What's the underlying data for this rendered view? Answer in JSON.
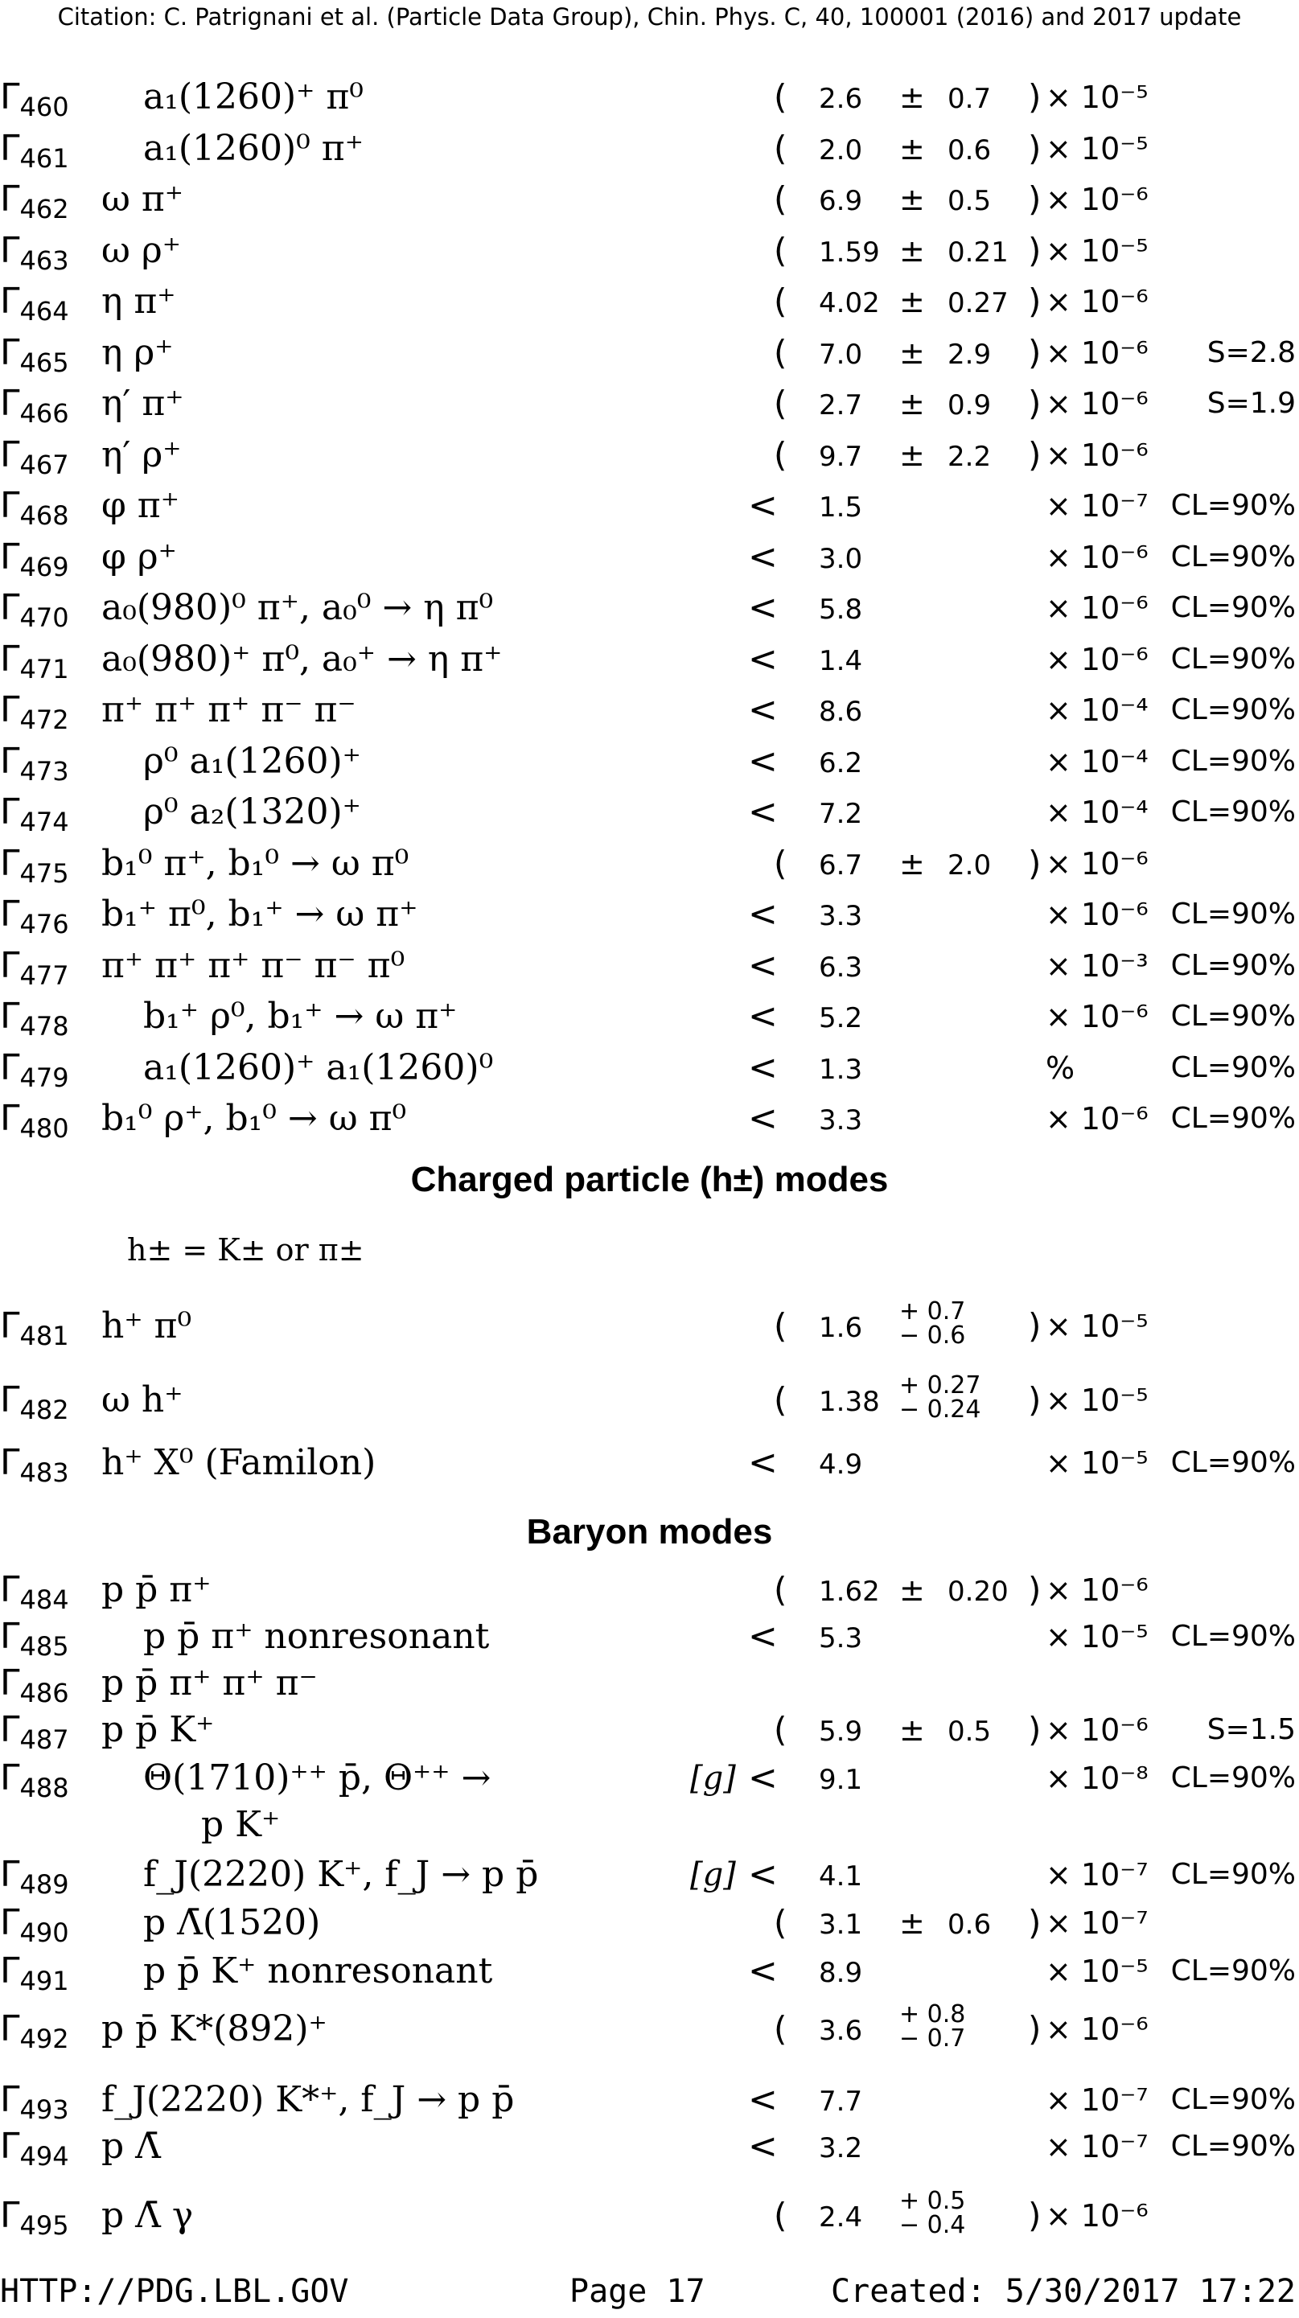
{
  "header": {
    "citation": "Citation: C. Patrignani et al. (Particle Data Group), Chin. Phys. C, 40, 100001 (2016) and 2017 update"
  },
  "rows_top": [
    {
      "id": "460",
      "mode": "a₁(1260)⁺ π⁰",
      "indent": true,
      "limit": "",
      "paren": true,
      "value": "2.6",
      "pm": "±",
      "err": "0.7",
      "err_up": "",
      "err_dn": "",
      "scale": "× 10⁻⁵",
      "extra": ""
    },
    {
      "id": "461",
      "mode": "a₁(1260)⁰ π⁺",
      "indent": true,
      "limit": "",
      "paren": true,
      "value": "2.0",
      "pm": "±",
      "err": "0.6",
      "err_up": "",
      "err_dn": "",
      "scale": "× 10⁻⁵",
      "extra": ""
    },
    {
      "id": "462",
      "mode": "ω π⁺",
      "indent": false,
      "limit": "",
      "paren": true,
      "value": "6.9",
      "pm": "±",
      "err": "0.5",
      "err_up": "",
      "err_dn": "",
      "scale": "× 10⁻⁶",
      "extra": ""
    },
    {
      "id": "463",
      "mode": "ω ρ⁺",
      "indent": false,
      "limit": "",
      "paren": true,
      "value": "1.59",
      "pm": "±",
      "err": "0.21",
      "err_up": "",
      "err_dn": "",
      "scale": "× 10⁻⁵",
      "extra": ""
    },
    {
      "id": "464",
      "mode": "η π⁺",
      "indent": false,
      "limit": "",
      "paren": true,
      "value": "4.02",
      "pm": "±",
      "err": "0.27",
      "err_up": "",
      "err_dn": "",
      "scale": "× 10⁻⁶",
      "extra": ""
    },
    {
      "id": "465",
      "mode": "η ρ⁺",
      "indent": false,
      "limit": "",
      "paren": true,
      "value": "7.0",
      "pm": "±",
      "err": "2.9",
      "err_up": "",
      "err_dn": "",
      "scale": "× 10⁻⁶",
      "extra": "S=2.8"
    },
    {
      "id": "466",
      "mode": "η′ π⁺",
      "indent": false,
      "limit": "",
      "paren": true,
      "value": "2.7",
      "pm": "±",
      "err": "0.9",
      "err_up": "",
      "err_dn": "",
      "scale": "× 10⁻⁶",
      "extra": "S=1.9"
    },
    {
      "id": "467",
      "mode": "η′ ρ⁺",
      "indent": false,
      "limit": "",
      "paren": true,
      "value": "9.7",
      "pm": "±",
      "err": "2.2",
      "err_up": "",
      "err_dn": "",
      "scale": "× 10⁻⁶",
      "extra": ""
    },
    {
      "id": "468",
      "mode": "φ π⁺",
      "indent": false,
      "limit": "<",
      "paren": false,
      "value": "1.5",
      "pm": "",
      "err": "",
      "err_up": "",
      "err_dn": "",
      "scale": "× 10⁻⁷",
      "extra": "CL=90%"
    },
    {
      "id": "469",
      "mode": "φ ρ⁺",
      "indent": false,
      "limit": "<",
      "paren": false,
      "value": "3.0",
      "pm": "",
      "err": "",
      "err_up": "",
      "err_dn": "",
      "scale": "× 10⁻⁶",
      "extra": "CL=90%"
    },
    {
      "id": "470",
      "mode": "a₀(980)⁰ π⁺,  a₀⁰ → η π⁰",
      "indent": false,
      "limit": "<",
      "paren": false,
      "value": "5.8",
      "pm": "",
      "err": "",
      "err_up": "",
      "err_dn": "",
      "scale": "× 10⁻⁶",
      "extra": "CL=90%"
    },
    {
      "id": "471",
      "mode": "a₀(980)⁺ π⁰,  a₀⁺ → η π⁺",
      "indent": false,
      "limit": "<",
      "paren": false,
      "value": "1.4",
      "pm": "",
      "err": "",
      "err_up": "",
      "err_dn": "",
      "scale": "× 10⁻⁶",
      "extra": "CL=90%"
    },
    {
      "id": "472",
      "mode": "π⁺ π⁺ π⁺ π⁻ π⁻",
      "indent": false,
      "limit": "<",
      "paren": false,
      "value": "8.6",
      "pm": "",
      "err": "",
      "err_up": "",
      "err_dn": "",
      "scale": "× 10⁻⁴",
      "extra": "CL=90%"
    },
    {
      "id": "473",
      "mode": "ρ⁰ a₁(1260)⁺",
      "indent": true,
      "limit": "<",
      "paren": false,
      "value": "6.2",
      "pm": "",
      "err": "",
      "err_up": "",
      "err_dn": "",
      "scale": "× 10⁻⁴",
      "extra": "CL=90%"
    },
    {
      "id": "474",
      "mode": "ρ⁰ a₂(1320)⁺",
      "indent": true,
      "limit": "<",
      "paren": false,
      "value": "7.2",
      "pm": "",
      "err": "",
      "err_up": "",
      "err_dn": "",
      "scale": "× 10⁻⁴",
      "extra": "CL=90%"
    },
    {
      "id": "475",
      "mode": "b₁⁰ π⁺,  b₁⁰ → ω π⁰",
      "indent": false,
      "limit": "",
      "paren": true,
      "value": "6.7",
      "pm": "±",
      "err": "2.0",
      "err_up": "",
      "err_dn": "",
      "scale": "× 10⁻⁶",
      "extra": ""
    },
    {
      "id": "476",
      "mode": "b₁⁺ π⁰,  b₁⁺ → ω π⁺",
      "indent": false,
      "limit": "<",
      "paren": false,
      "value": "3.3",
      "pm": "",
      "err": "",
      "err_up": "",
      "err_dn": "",
      "scale": "× 10⁻⁶",
      "extra": "CL=90%"
    },
    {
      "id": "477",
      "mode": "π⁺ π⁺ π⁺ π⁻ π⁻ π⁰",
      "indent": false,
      "limit": "<",
      "paren": false,
      "value": "6.3",
      "pm": "",
      "err": "",
      "err_up": "",
      "err_dn": "",
      "scale": "× 10⁻³",
      "extra": "CL=90%"
    },
    {
      "id": "478",
      "mode": "b₁⁺ ρ⁰,  b₁⁺ → ω π⁺",
      "indent": true,
      "limit": "<",
      "paren": false,
      "value": "5.2",
      "pm": "",
      "err": "",
      "err_up": "",
      "err_dn": "",
      "scale": "× 10⁻⁶",
      "extra": "CL=90%"
    },
    {
      "id": "479",
      "mode": "a₁(1260)⁺ a₁(1260)⁰",
      "indent": true,
      "limit": "<",
      "paren": false,
      "value": "1.3",
      "pm": "",
      "err": "",
      "err_up": "",
      "err_dn": "",
      "scale": "%",
      "extra": "CL=90%"
    },
    {
      "id": "480",
      "mode": "b₁⁰ ρ⁺,  b₁⁰ → ω π⁰",
      "indent": false,
      "limit": "<",
      "paren": false,
      "value": "3.3",
      "pm": "",
      "err": "",
      "err_up": "",
      "err_dn": "",
      "scale": "× 10⁻⁶",
      "extra": "CL=90%"
    }
  ],
  "section_charged": {
    "title": "Charged particle (h±) modes",
    "definition": "h± = K± or π±"
  },
  "rows_charged": [
    {
      "id": "481",
      "mode": "h⁺ π⁰",
      "indent": false,
      "limit": "",
      "paren": true,
      "value": "1.6",
      "pm": "",
      "err": "",
      "err_up": "+ 0.7",
      "err_dn": "− 0.6",
      "scale": "× 10⁻⁵",
      "extra": ""
    },
    {
      "id": "482",
      "mode": "ω h⁺",
      "indent": false,
      "limit": "",
      "paren": true,
      "value": "1.38",
      "pm": "",
      "err": "",
      "err_up": "+ 0.27",
      "err_dn": "− 0.24",
      "scale": "× 10⁻⁵",
      "extra": ""
    },
    {
      "id": "483",
      "mode": "h⁺ X⁰ (Familon)",
      "indent": false,
      "limit": "<",
      "paren": false,
      "value": "4.9",
      "pm": "",
      "err": "",
      "err_up": "",
      "err_dn": "",
      "scale": "× 10⁻⁵",
      "extra": "CL=90%"
    }
  ],
  "section_baryon": {
    "title": "Baryon modes"
  },
  "rows_baryon": [
    {
      "id": "484",
      "mode": "p p̄ π⁺",
      "indent": false,
      "limit": "",
      "paren": true,
      "value": "1.62",
      "pm": "±",
      "err": "0.20",
      "err_up": "",
      "err_dn": "",
      "scale": "× 10⁻⁶",
      "extra": ""
    },
    {
      "id": "485",
      "mode": "p p̄ π⁺ nonresonant",
      "indent": true,
      "limit": "<",
      "paren": false,
      "value": "5.3",
      "pm": "",
      "err": "",
      "err_up": "",
      "err_dn": "",
      "scale": "× 10⁻⁵",
      "extra": "CL=90%"
    },
    {
      "id": "486",
      "mode": "p p̄ π⁺ π⁺ π⁻",
      "indent": false,
      "limit": "",
      "paren": false,
      "value": "",
      "pm": "",
      "err": "",
      "err_up": "",
      "err_dn": "",
      "scale": "",
      "extra": ""
    },
    {
      "id": "487",
      "mode": "p p̄ K⁺",
      "indent": false,
      "limit": "",
      "paren": true,
      "value": "5.9",
      "pm": "±",
      "err": "0.5",
      "err_up": "",
      "err_dn": "",
      "scale": "× 10⁻⁶",
      "extra": "S=1.5"
    },
    {
      "id": "488",
      "mode": "Θ(1710)⁺⁺ p̄,  Θ⁺⁺ →",
      "mode2": "p K⁺",
      "indent": true,
      "note": "[g]",
      "limit": "<",
      "paren": false,
      "value": "9.1",
      "pm": "",
      "err": "",
      "err_up": "",
      "err_dn": "",
      "scale": "× 10⁻⁸",
      "extra": "CL=90%"
    },
    {
      "id": "489",
      "mode": "f_J(2220) K⁺,  f_J → p p̄",
      "indent": true,
      "note": "[g]",
      "limit": "<",
      "paren": false,
      "value": "4.1",
      "pm": "",
      "err": "",
      "err_up": "",
      "err_dn": "",
      "scale": "× 10⁻⁷",
      "extra": "CL=90%"
    },
    {
      "id": "490",
      "mode": "p Λ̄(1520)",
      "indent": true,
      "limit": "",
      "paren": true,
      "value": "3.1",
      "pm": "±",
      "err": "0.6",
      "err_up": "",
      "err_dn": "",
      "scale": "× 10⁻⁷",
      "extra": ""
    },
    {
      "id": "491",
      "mode": "p p̄ K⁺ nonresonant",
      "indent": true,
      "limit": "<",
      "paren": false,
      "value": "8.9",
      "pm": "",
      "err": "",
      "err_up": "",
      "err_dn": "",
      "scale": "× 10⁻⁵",
      "extra": "CL=90%"
    },
    {
      "id": "492",
      "mode": "p p̄ K*(892)⁺",
      "indent": false,
      "limit": "",
      "paren": true,
      "value": "3.6",
      "pm": "",
      "err": "",
      "err_up": "+ 0.8",
      "err_dn": "− 0.7",
      "scale": "× 10⁻⁶",
      "extra": ""
    },
    {
      "id": "493",
      "mode": "f_J(2220) K*⁺,  f_J → p p̄",
      "indent": false,
      "limit": "<",
      "paren": false,
      "value": "7.7",
      "pm": "",
      "err": "",
      "err_up": "",
      "err_dn": "",
      "scale": "× 10⁻⁷",
      "extra": "CL=90%"
    },
    {
      "id": "494",
      "mode": "p Λ̄",
      "indent": false,
      "limit": "<",
      "paren": false,
      "value": "3.2",
      "pm": "",
      "err": "",
      "err_up": "",
      "err_dn": "",
      "scale": "× 10⁻⁷",
      "extra": "CL=90%"
    },
    {
      "id": "495",
      "mode": "p Λ̄ γ",
      "indent": false,
      "limit": "",
      "paren": true,
      "value": "2.4",
      "pm": "",
      "err": "",
      "err_up": "+ 0.5",
      "err_dn": "− 0.4",
      "scale": "× 10⁻⁶",
      "extra": ""
    }
  ],
  "footer": {
    "url": "HTTP://PDG.LBL.GOV",
    "page": "Page 17",
    "created": "Created: 5/30/2017 17:22"
  }
}
